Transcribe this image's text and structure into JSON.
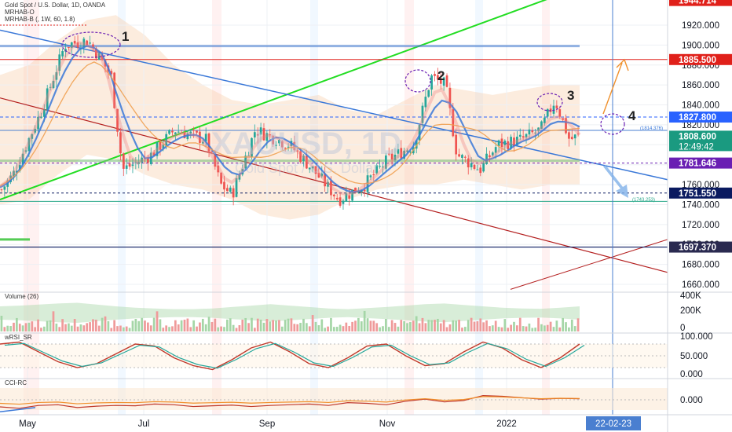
{
  "header": {
    "title": "Gold Spot / U.S. Dollar, 1D, OANDA",
    "indicator1": "MRHAB-O",
    "indicator2": "MRHAB-B (, 1W, 60, 1.8)"
  },
  "colors": {
    "up": "#26a69a",
    "down": "#ef5350",
    "green_trend": "#22dd22",
    "blue_trend": "#3a78d8",
    "red_trend": "#b42020",
    "purple": "#6a1fb3",
    "price_tag": "#2962ff",
    "red_tag": "#e0201a",
    "navy_tag": "#0a1a60"
  },
  "watermark": {
    "symbol": "XAUUSD, 1D",
    "name": "Gold Spot / U.S. Dollar"
  },
  "annotations": [
    "1",
    "2",
    "3",
    "4"
  ],
  "main_axis": {
    "ticks": [
      "1920.000",
      "1900.000",
      "1880.000",
      "1860.000",
      "1840.000",
      "1820.000",
      "1800.000",
      "1780.000",
      "1760.000",
      "1740.000",
      "1720.000",
      "1700.000",
      "1680.000",
      "1660.000"
    ]
  },
  "level_notes": {
    "upper": "(1814.376)",
    "lower": "(1743.253)"
  },
  "price_tags": {
    "top": "1944.714",
    "red": "1885.500",
    "blue1": "1827.800",
    "current": "1808.600",
    "countdown": "12:49:42",
    "purple": "1781.646",
    "navy1": "1751.550",
    "navy2": "1697.370"
  },
  "volume_pane": {
    "title": "Volume (26)",
    "ticks": [
      "400K",
      "200K",
      "0"
    ]
  },
  "rsi_pane": {
    "title": "wRSI_SR",
    "ticks": [
      "100.000",
      "50.000",
      "0.000"
    ]
  },
  "cci_pane": {
    "title": "CCI-RC",
    "ticks": [
      "0.000"
    ]
  },
  "time_axis": {
    "labels": [
      "May",
      "Jul",
      "Sep",
      "Nov",
      "2022",
      "Mar"
    ],
    "cursor_date": "22-02-23"
  },
  "chart_data": {
    "type": "candlestick",
    "title": "Gold Spot / U.S. Dollar, 1D, OANDA",
    "xlabel": "",
    "ylabel": "",
    "ylim": [
      1650,
      1945
    ],
    "x_ticks": [
      "May",
      "Jul",
      "Sep",
      "Nov",
      "2022"
    ],
    "y_ticks": [
      1920,
      1900,
      1880,
      1860,
      1840,
      1820,
      1800,
      1780,
      1760,
      1740,
      1720,
      1700,
      1680,
      1660
    ],
    "key_levels": [
      1944.714,
      1885.5,
      1827.8,
      1808.6,
      1781.646,
      1751.55,
      1697.37,
      1814.376,
      1743.253
    ],
    "weekly_close": [
      1775,
      1790,
      1812,
      1838,
      1845,
      1868,
      1880,
      1899,
      1905,
      1895,
      1905,
      1885,
      1880,
      1860,
      1768,
      1772,
      1780,
      1782,
      1808,
      1815,
      1812,
      1810,
      1780,
      1762,
      1730,
      1795,
      1812,
      1826,
      1822,
      1805,
      1784,
      1790,
      1770,
      1748,
      1752,
      1760,
      1780,
      1795,
      1775,
      1765,
      1790,
      1808,
      1820,
      1862,
      1868,
      1845,
      1787,
      1783,
      1785,
      1796,
      1802,
      1795,
      1800,
      1830,
      1822,
      1792,
      1810,
      1832,
      1858,
      1843,
      1815,
      1808.6
    ],
    "price_path": [
      {
        "pos": 0.0,
        "price": 1755
      },
      {
        "pos": 0.02,
        "price": 1770
      },
      {
        "pos": 0.07,
        "price": 1835
      },
      {
        "pos": 0.11,
        "price": 1900
      },
      {
        "pos": 0.15,
        "price": 1905
      },
      {
        "pos": 0.19,
        "price": 1870
      },
      {
        "pos": 0.21,
        "price": 1775
      },
      {
        "pos": 0.26,
        "price": 1790
      },
      {
        "pos": 0.3,
        "price": 1815
      },
      {
        "pos": 0.355,
        "price": 1805
      },
      {
        "pos": 0.38,
        "price": 1760
      },
      {
        "pos": 0.4,
        "price": 1750
      },
      {
        "pos": 0.44,
        "price": 1815
      },
      {
        "pos": 0.5,
        "price": 1800
      },
      {
        "pos": 0.54,
        "price": 1775
      },
      {
        "pos": 0.585,
        "price": 1745
      },
      {
        "pos": 0.63,
        "price": 1760
      },
      {
        "pos": 0.67,
        "price": 1785
      },
      {
        "pos": 0.715,
        "price": 1800
      },
      {
        "pos": 0.745,
        "price": 1868
      },
      {
        "pos": 0.77,
        "price": 1860
      },
      {
        "pos": 0.79,
        "price": 1790
      },
      {
        "pos": 0.83,
        "price": 1775
      },
      {
        "pos": 0.86,
        "price": 1800
      },
      {
        "pos": 0.9,
        "price": 1805
      },
      {
        "pos": 0.935,
        "price": 1815
      },
      {
        "pos": 0.96,
        "price": 1845
      },
      {
        "pos": 0.985,
        "price": 1805
      },
      {
        "pos": 1.0,
        "price": 1808.6
      }
    ],
    "band_upper": [
      1870,
      1880,
      1905,
      1925,
      1930,
      1910,
      1880,
      1860,
      1845,
      1840,
      1845,
      1850,
      1835,
      1830,
      1845,
      1860,
      1855,
      1850,
      1855,
      1860,
      1860
    ],
    "band_lower": [
      1740,
      1745,
      1770,
      1790,
      1785,
      1770,
      1760,
      1755,
      1745,
      1730,
      1725,
      1730,
      1745,
      1755,
      1760,
      1760,
      1765,
      1760,
      1755,
      1760,
      1760
    ],
    "volume_cycle": [
      20,
      22,
      25,
      28,
      30,
      25,
      20,
      16,
      14,
      12,
      12,
      14,
      18,
      22,
      26,
      22,
      18,
      14,
      12,
      15,
      18,
      22,
      26,
      28,
      24,
      20,
      16,
      14,
      13,
      16,
      20
    ],
    "rsi_cycle": [
      80,
      85,
      60,
      35,
      20,
      30,
      55,
      80,
      75,
      45,
      25,
      15,
      40,
      70,
      85,
      60,
      30,
      20,
      45,
      75,
      80,
      50,
      25,
      30,
      60,
      85,
      70,
      40,
      20,
      45,
      80
    ],
    "cci_cycle": [
      -100,
      -120,
      -80,
      -70,
      -110,
      -90,
      -80,
      -85,
      -60,
      -70,
      -95,
      -85,
      -75,
      -95,
      -80,
      -70,
      -60,
      -80,
      -40,
      -50,
      -70,
      -20,
      10,
      -30,
      -10,
      60,
      50,
      30,
      10,
      20,
      15
    ]
  }
}
